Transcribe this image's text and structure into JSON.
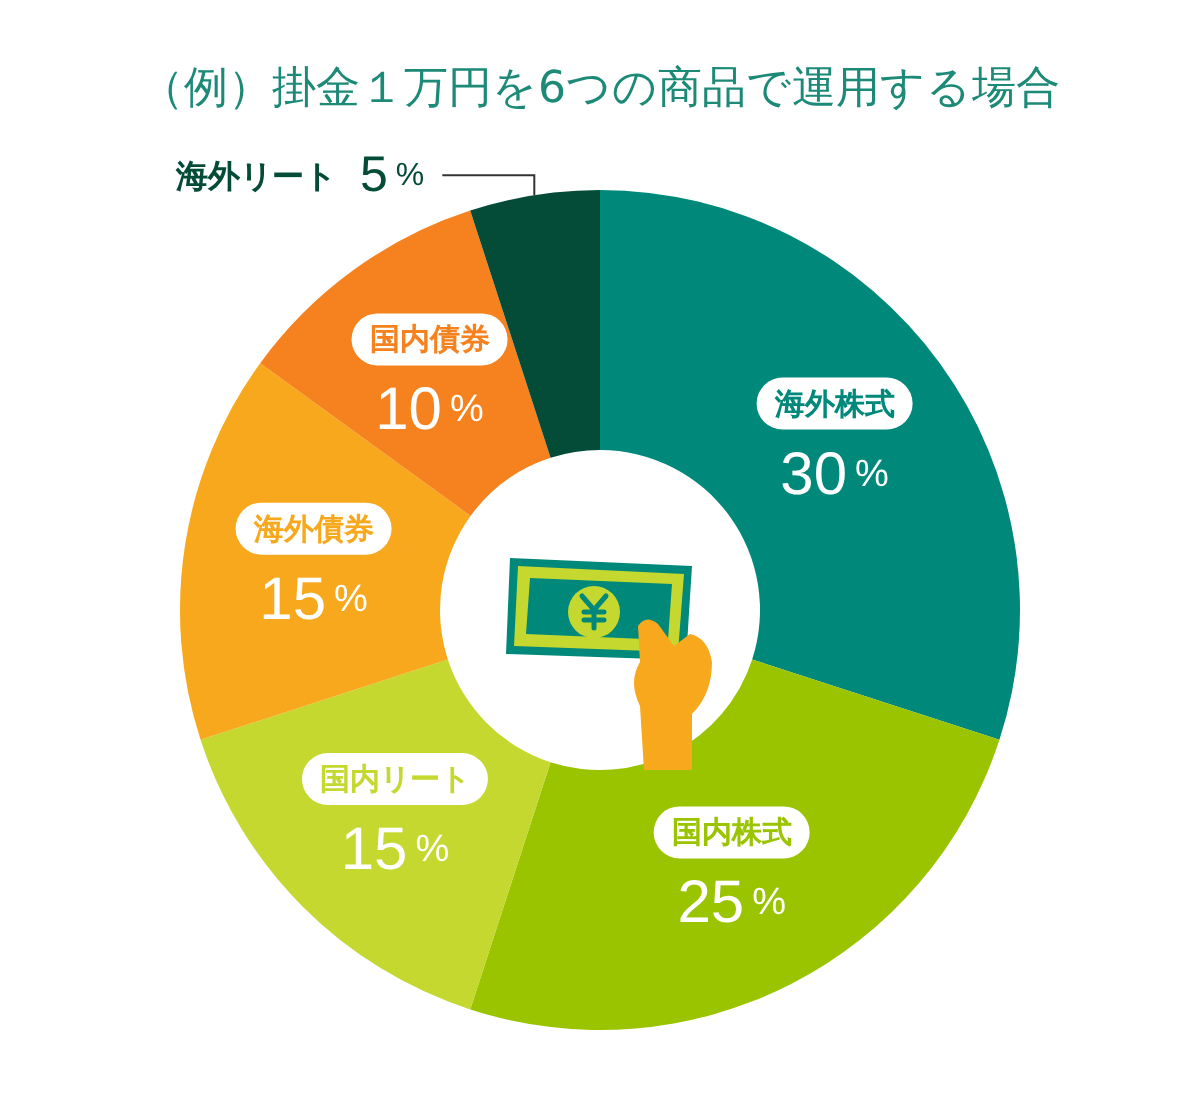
{
  "chart_data": {
    "type": "donut",
    "title": "（例）掛金１万円を6つの商品で運用する場合",
    "categories": [
      "海外株式",
      "国内株式",
      "国内リート",
      "海外債券",
      "国内債券",
      "海外リート"
    ],
    "values": [
      30,
      25,
      15,
      15,
      10,
      5
    ],
    "colors": [
      "#00897a",
      "#9bc400",
      "#c4d82f",
      "#f7a81c",
      "#f5821f",
      "#044c37"
    ],
    "value_labels": [
      "30%",
      "25%",
      "15%",
      "15%",
      "10%",
      "5%"
    ],
    "legend": false
  }
}
